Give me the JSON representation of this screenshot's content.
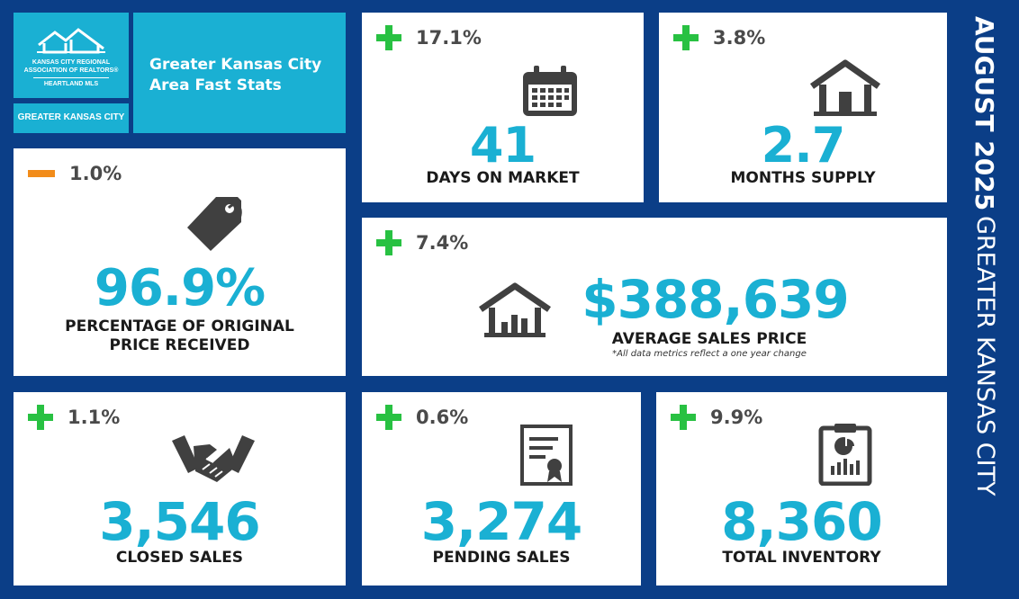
{
  "logo": {
    "text": "KANSAS CITY REGIONAL ASSOCIATION OF REALTORS® HEARTLAND MLS",
    "line1": "KANSAS CITY REGIONAL",
    "line2": "ASSOCIATION OF REALTORS®",
    "line3": "HEARTLAND MLS"
  },
  "region_tag": "GREATER KANSAS CITY",
  "title": {
    "line1": "Greater Kansas City",
    "line2": "Area Fast Stats"
  },
  "sidebar": {
    "month": "AUGUST 2025",
    "area": "GREATER KANSAS CITY"
  },
  "colors": {
    "background": "#0b3e87",
    "accent": "#1ab0d3",
    "up": "#28c142",
    "down": "#f28c1a"
  },
  "stats": {
    "days_on_market": {
      "change": "17.1%",
      "direction": "up",
      "value": "41",
      "label": "DAYS ON MARKET",
      "icon": "calendar-icon"
    },
    "months_supply": {
      "change": "3.8%",
      "direction": "up",
      "value": "2.7",
      "label": "MONTHS SUPPLY",
      "icon": "house-icon"
    },
    "pct_original_price": {
      "change": "1.0%",
      "direction": "down",
      "value": "96.9%",
      "label_line1": "PERCENTAGE OF ORIGINAL",
      "label_line2": "PRICE RECEIVED",
      "icon": "price-tag-icon"
    },
    "avg_sales_price": {
      "change": "7.4%",
      "direction": "up",
      "value": "$388,639",
      "label": "AVERAGE SALES PRICE",
      "note": "*All data metrics reflect a one year change",
      "icon": "house-chart-icon"
    },
    "closed_sales": {
      "change": "1.1%",
      "direction": "up",
      "value": "3,546",
      "label": "CLOSED SALES",
      "icon": "handshake-icon"
    },
    "pending_sales": {
      "change": "0.6%",
      "direction": "up",
      "value": "3,274",
      "label": "PENDING SALES",
      "icon": "certificate-icon"
    },
    "total_inventory": {
      "change": "9.9%",
      "direction": "up",
      "value": "8,360",
      "label": "TOTAL INVENTORY",
      "icon": "clipboard-chart-icon"
    }
  }
}
